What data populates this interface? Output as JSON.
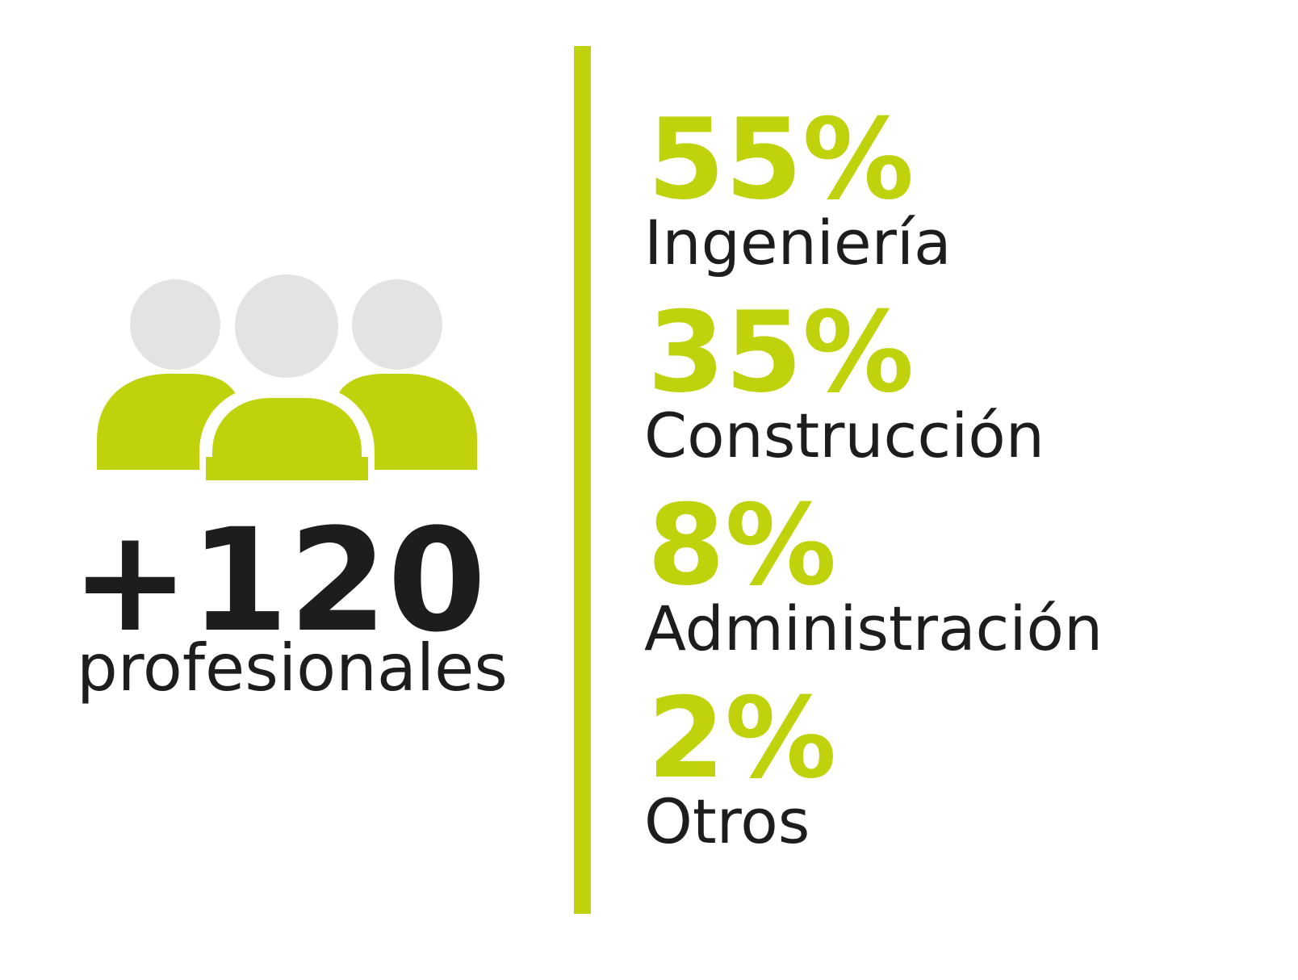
{
  "headline": {
    "number": "+120",
    "label": "profesionales"
  },
  "stats": [
    {
      "percent": "55%",
      "label": "Ingeniería"
    },
    {
      "percent": "35%",
      "label": "Construcción"
    },
    {
      "percent": "8%",
      "label": "Administración"
    },
    {
      "percent": "2%",
      "label": "Otros"
    }
  ]
}
